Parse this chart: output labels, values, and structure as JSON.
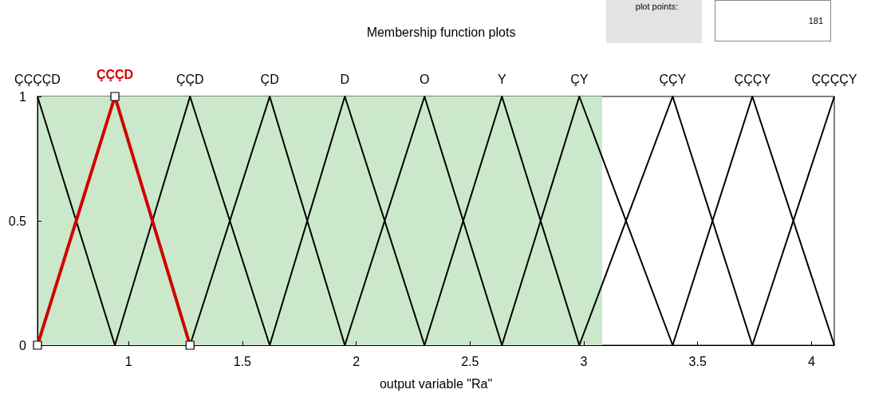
{
  "chart_data": {
    "type": "line",
    "title": "Membership function plots",
    "xlabel": "output variable \"Ra\"",
    "annotations": [
      "plot points:",
      "181"
    ],
    "xlim": [
      0.6,
      4.1
    ],
    "xticks": [
      1,
      1.5,
      2,
      2.5,
      3,
      3.5,
      4
    ],
    "ylim": [
      0,
      1
    ],
    "yticks": [
      0,
      0.5,
      1
    ],
    "grid": false,
    "legend": false,
    "marker": "none",
    "bands": [
      {
        "axis": "x",
        "from": 0.6,
        "to": 3.08,
        "color": "#cbe8cb"
      }
    ],
    "series": [
      {
        "name": "ÇÇÇÇD",
        "color": "#000000",
        "x": [
          0.6,
          0.94
        ],
        "values": [
          1,
          0
        ]
      },
      {
        "name": "ÇÇÇD",
        "color": "#d10000",
        "x": [
          0.6,
          0.94,
          1.27
        ],
        "values": [
          0,
          1,
          0
        ],
        "marker": "square"
      },
      {
        "name": "ÇÇD",
        "color": "#000000",
        "x": [
          0.94,
          1.27,
          1.62
        ],
        "values": [
          0,
          1,
          0
        ]
      },
      {
        "name": "ÇD",
        "color": "#000000",
        "x": [
          1.27,
          1.62,
          1.95
        ],
        "values": [
          0,
          1,
          0
        ]
      },
      {
        "name": "D",
        "color": "#000000",
        "x": [
          1.62,
          1.95,
          2.3
        ],
        "values": [
          0,
          1,
          0
        ]
      },
      {
        "name": "O",
        "color": "#000000",
        "x": [
          1.95,
          2.3,
          2.64
        ],
        "values": [
          0,
          1,
          0
        ]
      },
      {
        "name": "Y",
        "color": "#000000",
        "x": [
          2.3,
          2.64,
          2.98
        ],
        "values": [
          0,
          1,
          0
        ]
      },
      {
        "name": "ÇY",
        "color": "#000000",
        "x": [
          2.64,
          2.98,
          3.39
        ],
        "values": [
          0,
          1,
          0
        ]
      },
      {
        "name": "ÇÇY",
        "color": "#000000",
        "x": [
          2.98,
          3.39,
          3.74
        ],
        "values": [
          0,
          1,
          0
        ]
      },
      {
        "name": "ÇÇÇY",
        "color": "#000000",
        "x": [
          3.39,
          3.74,
          4.1
        ],
        "values": [
          0,
          1,
          0
        ]
      },
      {
        "name": "ÇÇÇÇY",
        "color": "#000000",
        "x": [
          3.74,
          4.1
        ],
        "values": [
          0,
          1
        ]
      }
    ]
  }
}
